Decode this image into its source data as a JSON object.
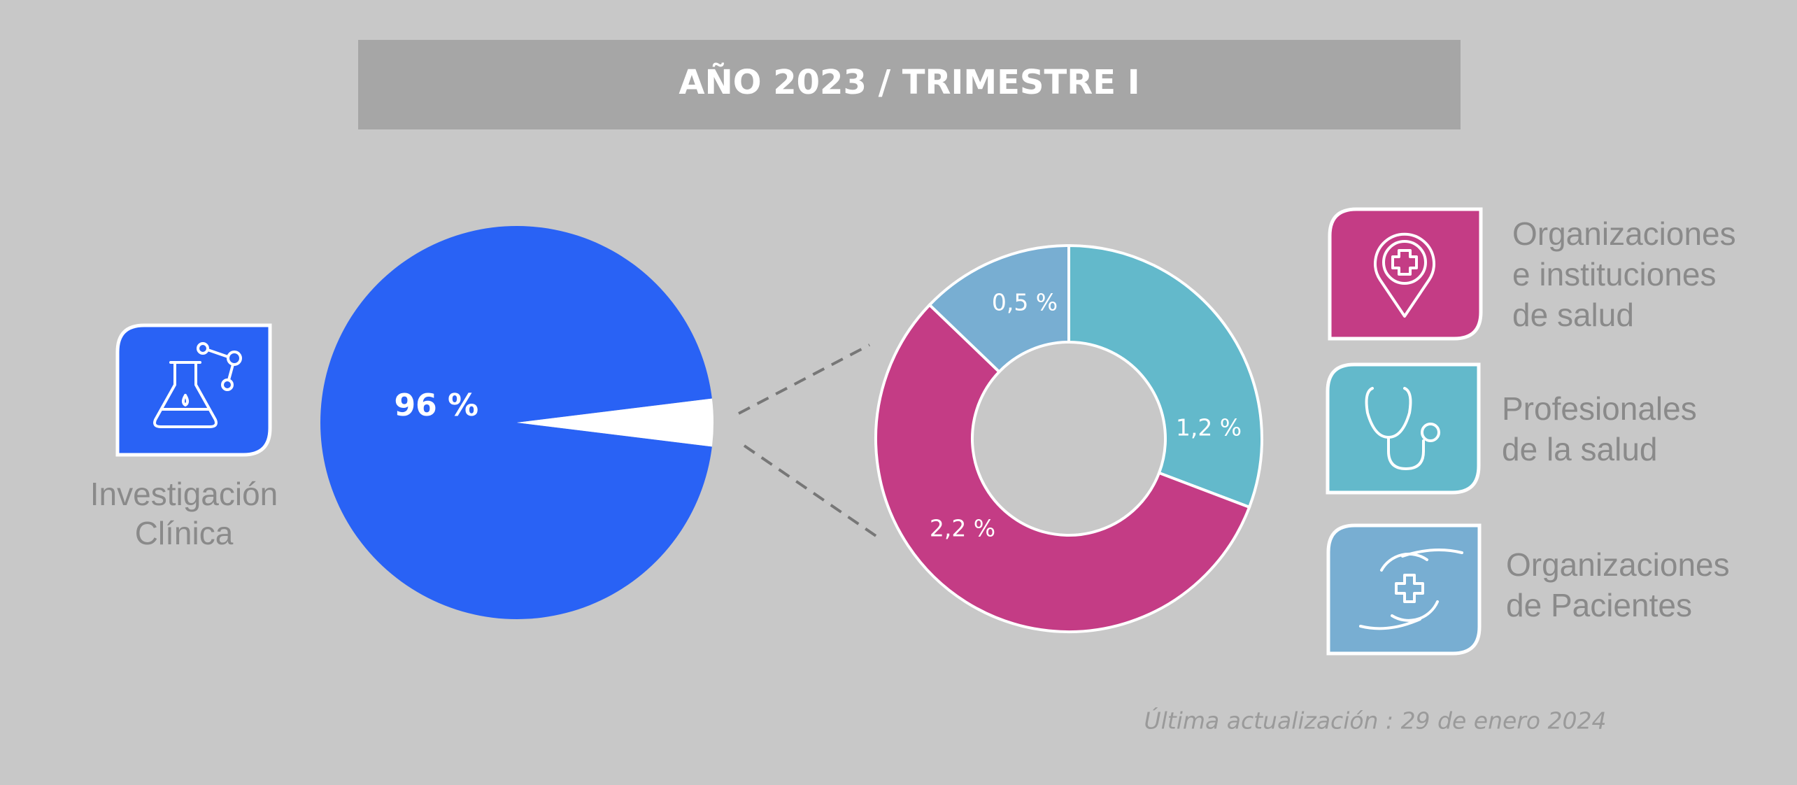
{
  "header": {
    "title": "AÑO 2023 / TRIMESTRE I"
  },
  "footer": {
    "note": "Última actualización : 29 de enero 2024"
  },
  "chart_data": [
    {
      "type": "pie",
      "categories": [
        "Investigación\nClínica",
        null
      ],
      "values": [
        96,
        3.9
      ],
      "value_labels": [
        "96 %",
        null
      ],
      "colors": [
        "#2962f5",
        "#ffffff"
      ]
    },
    {
      "type": "donut",
      "categories": [
        "Profesionales\nde la salud",
        "Organizaciones\ne instituciones\nde salud",
        "Organizaciones\nde Pacientes"
      ],
      "values": [
        1.2,
        2.2,
        0.5
      ],
      "value_labels": [
        "1,2 %",
        "2,2 %",
        "0,5 %"
      ],
      "colors": [
        "#63b9cb",
        "#c43c85",
        "#78aed2"
      ]
    }
  ]
}
